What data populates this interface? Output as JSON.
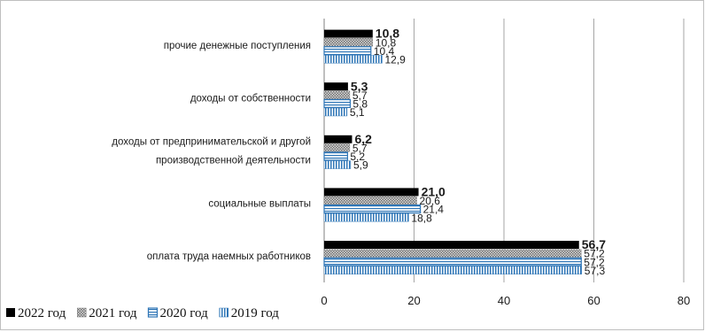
{
  "chart_data": {
    "type": "bar",
    "orientation": "horizontal",
    "categories": [
      "прочие денежные поступления",
      "доходы от собственности",
      [
        "доходы от предпринимательской и другой",
        "производственной деятельности"
      ],
      "социальные выплаты",
      "оплата труда наемных работников"
    ],
    "series": [
      {
        "name": "2022 год",
        "values": [
          10.8,
          5.3,
          6.2,
          21.0,
          56.7
        ],
        "labels": [
          "10,8",
          "5,3",
          "6,2",
          "21,0",
          "56,7"
        ],
        "color": "#000000",
        "pattern": "solid"
      },
      {
        "name": "2021 год",
        "values": [
          10.8,
          5.7,
          5.7,
          20.6,
          57.2
        ],
        "labels": [
          "10,8",
          "5,7",
          "5,7",
          "20,6",
          "57,2"
        ],
        "color": "#7f7f7f",
        "pattern": "dots"
      },
      {
        "name": "2020 год",
        "values": [
          10.4,
          5.8,
          5.2,
          21.4,
          57.2
        ],
        "labels": [
          "10,4",
          "5,8",
          "5,2",
          "21,4",
          "57,2"
        ],
        "color": "#2e75b6",
        "pattern": "hstripes"
      },
      {
        "name": "2019 год",
        "values": [
          12.9,
          5.1,
          5.9,
          18.8,
          57.3
        ],
        "labels": [
          "12,9",
          "5,1",
          "5,9",
          "18,8",
          "57,3"
        ],
        "color": "#2e75b6",
        "pattern": "vstripes"
      }
    ],
    "xlim": [
      0,
      80
    ],
    "xticks": [
      0,
      20,
      40,
      60,
      80
    ],
    "grid": "vertical",
    "legend_position": "bottom-left"
  }
}
